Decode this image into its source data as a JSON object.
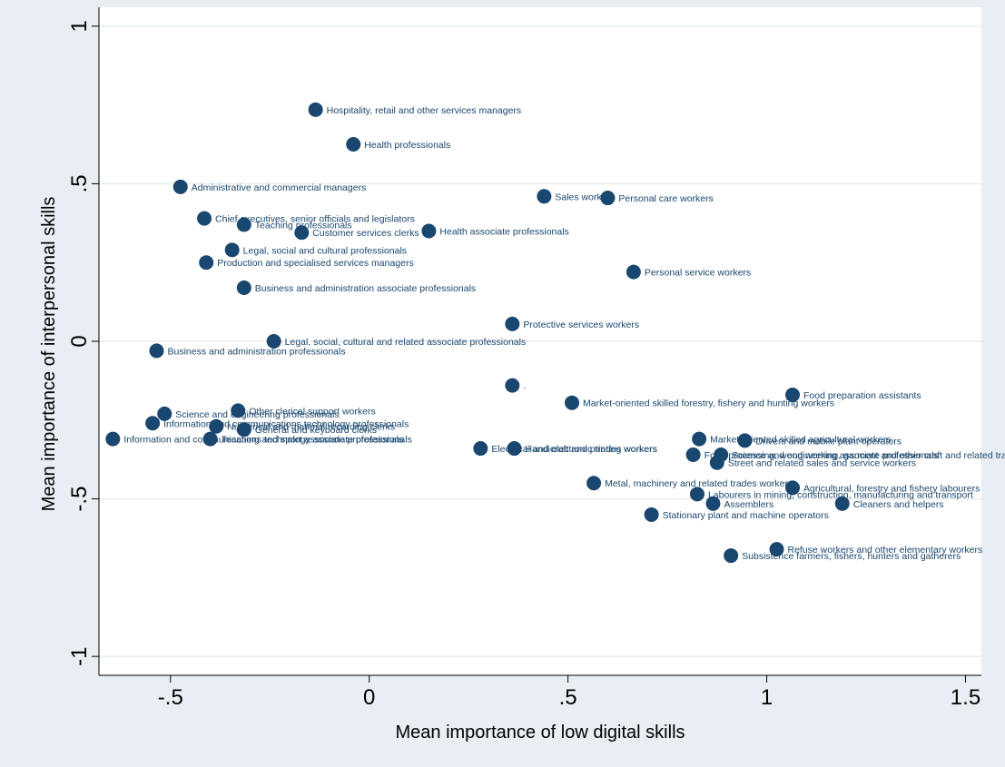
{
  "chart_data": {
    "type": "scatter",
    "xlabel": "Mean importance of low digital skills",
    "ylabel": "Mean importance of interpersonal skills",
    "xlim": [
      -0.68,
      1.54
    ],
    "ylim": [
      -1.06,
      1.06
    ],
    "xticks": [
      -0.5,
      0,
      0.5,
      1,
      1.5
    ],
    "xtick_labels": [
      "-.5",
      "0",
      ".5",
      "1",
      "1.5"
    ],
    "yticks": [
      -1,
      -0.5,
      0,
      0.5,
      1
    ],
    "ytick_labels": [
      "-1",
      "-.5",
      "0",
      ".5",
      "1"
    ],
    "grid": "horizontal",
    "legend": "none",
    "marker_color": "#1a476f",
    "plot_background": "#ffffff",
    "outer_background": "#e8eef3",
    "gridline_color": "#e6ecef",
    "points": [
      {
        "label": "Hospitality, retail and other services managers",
        "x": -0.135,
        "y": 0.735
      },
      {
        "label": "Health professionals",
        "x": -0.04,
        "y": 0.625
      },
      {
        "label": "Administrative and commercial managers",
        "x": -0.475,
        "y": 0.49
      },
      {
        "label": "Sales workers",
        "x": 0.44,
        "y": 0.46
      },
      {
        "label": "Personal care workers",
        "x": 0.6,
        "y": 0.455
      },
      {
        "label": "Chief executives, senior officials and legislators",
        "x": -0.415,
        "y": 0.39
      },
      {
        "label": "Teaching professionals",
        "x": -0.315,
        "y": 0.37
      },
      {
        "label": "Customer services clerks",
        "x": -0.17,
        "y": 0.345
      },
      {
        "label": "Health associate professionals",
        "x": 0.15,
        "y": 0.35
      },
      {
        "label": "Legal, social and cultural professionals",
        "x": -0.345,
        "y": 0.29
      },
      {
        "label": "Production and specialised services managers",
        "x": -0.41,
        "y": 0.25
      },
      {
        "label": "Personal service workers",
        "x": 0.665,
        "y": 0.22
      },
      {
        "label": "Business and administration associate professionals",
        "x": -0.315,
        "y": 0.17
      },
      {
        "label": "Protective services workers",
        "x": 0.36,
        "y": 0.055
      },
      {
        "label": "Legal, social, cultural and related associate professionals",
        "x": -0.24,
        "y": 0.0
      },
      {
        "label": "Business and administration professionals",
        "x": -0.535,
        "y": -0.03
      },
      {
        "label": ".",
        "x": 0.36,
        "y": -0.14
      },
      {
        "label": "Food preparation assistants",
        "x": 1.065,
        "y": -0.17
      },
      {
        "label": "Market-oriented skilled forestry, fishery and hunting workers",
        "x": 0.51,
        "y": -0.195
      },
      {
        "label": "Other clerical support workers",
        "x": -0.33,
        "y": -0.22
      },
      {
        "label": "Science and engineering professionals",
        "x": -0.515,
        "y": -0.23
      },
      {
        "label": "Information and communications technology professionals",
        "x": -0.545,
        "y": -0.26
      },
      {
        "label": "Numerical and material recording clerks",
        "x": -0.385,
        "y": -0.27
      },
      {
        "label": "General and keyboard clerks",
        "x": -0.315,
        "y": -0.28
      },
      {
        "label": "Information and communications technology associate professionals",
        "x": -0.645,
        "y": -0.31
      },
      {
        "label": "Teaching and sport associate professionals",
        "x": -0.4,
        "y": -0.31
      },
      {
        "label": "Market-oriented skilled agricultural workers",
        "x": 0.83,
        "y": -0.31
      },
      {
        "label": "Drivers and mobile plant operators",
        "x": 0.945,
        "y": -0.315
      },
      {
        "label": "Electrical and electronic trades workers",
        "x": 0.28,
        "y": -0.34
      },
      {
        "label": "Handicraft and printing workers",
        "x": 0.365,
        "y": -0.34
      },
      {
        "label": "Food processing, wood working, garment and other craft and related trades workers",
        "x": 0.815,
        "y": -0.36
      },
      {
        "label": "Science and engineering associate professionals",
        "x": 0.885,
        "y": -0.36
      },
      {
        "label": "Street and related sales and service workers",
        "x": 0.875,
        "y": -0.385
      },
      {
        "label": "Metal, machinery and related trades workers",
        "x": 0.565,
        "y": -0.45
      },
      {
        "label": "Agricultural, forestry and fishery labourers",
        "x": 1.065,
        "y": -0.465
      },
      {
        "label": "Labourers in mining, construction, manufacturing and transport",
        "x": 0.825,
        "y": -0.485
      },
      {
        "label": "Assemblers",
        "x": 0.865,
        "y": -0.515
      },
      {
        "label": "Cleaners and helpers",
        "x": 1.19,
        "y": -0.515
      },
      {
        "label": "Stationary plant and machine operators",
        "x": 0.71,
        "y": -0.55
      },
      {
        "label": "Refuse workers and other elementary workers",
        "x": 1.025,
        "y": -0.66
      },
      {
        "label": "Subsistence farmers, fishers, hunters and gatherers",
        "x": 0.91,
        "y": -0.68
      }
    ]
  }
}
